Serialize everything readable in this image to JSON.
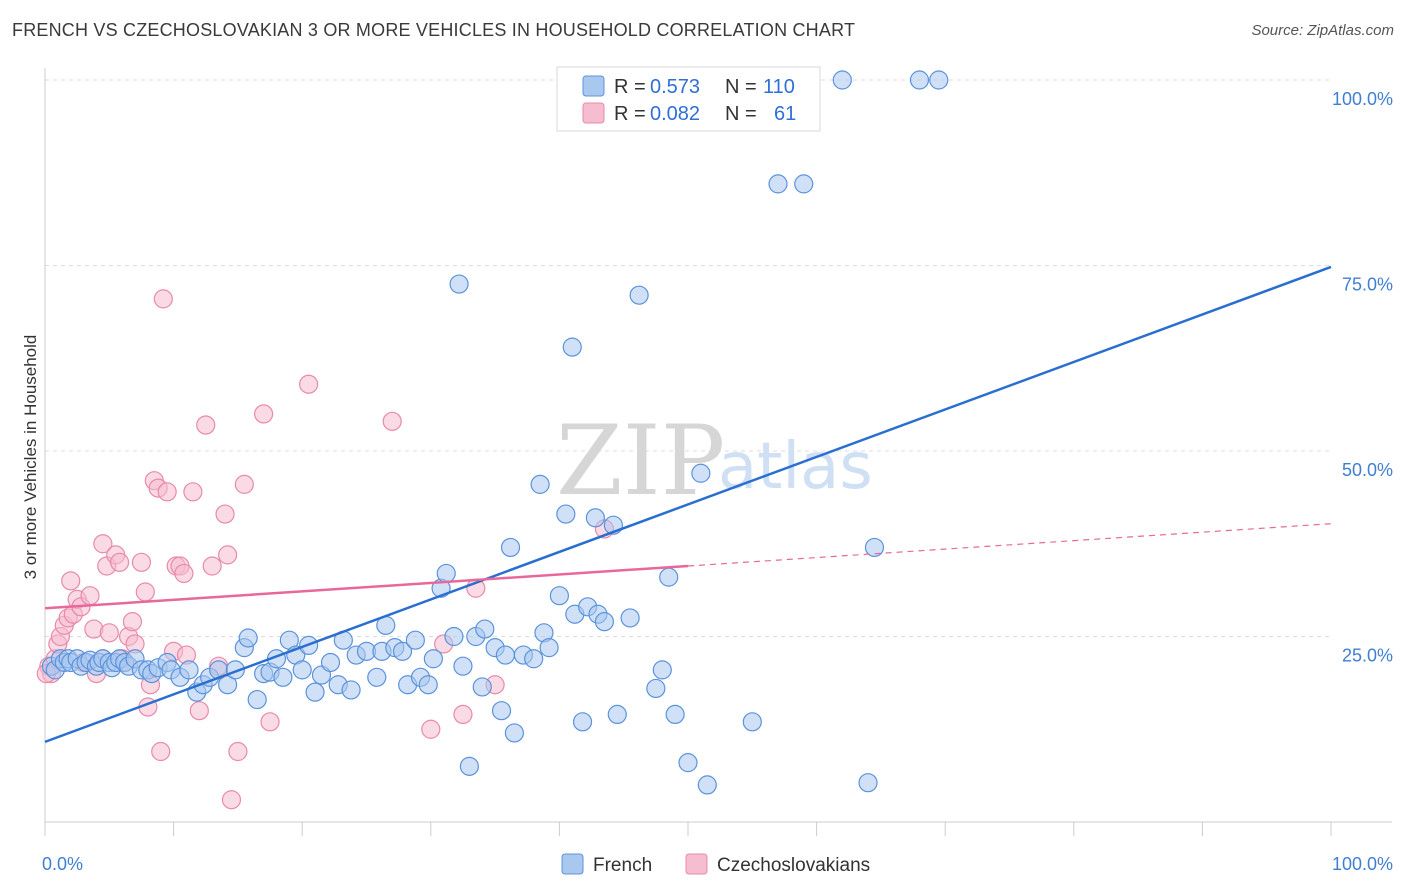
{
  "title": "FRENCH VS CZECHOSLOVAKIAN 3 OR MORE VEHICLES IN HOUSEHOLD CORRELATION CHART",
  "source": "Source: ZipAtlas.com",
  "watermark": {
    "zip": "ZIP",
    "atlas": "atlas"
  },
  "colors": {
    "french_fill": "#a9c8f0",
    "french_stroke": "#5b93da",
    "french_line": "#2a6fd0",
    "czech_fill": "#f6bcd0",
    "czech_stroke": "#e88aaa",
    "czech_line": "#e8689a",
    "grid": "#dddddd",
    "axis_text": "#3f7fd0"
  },
  "legend": {
    "rows": [
      {
        "r_label": "R =",
        "r_value": "0.573",
        "n_label": "N =",
        "n_value": "110"
      },
      {
        "r_label": "R =",
        "r_value": "0.082",
        "n_label": "N =",
        "n_value": "61"
      }
    ]
  },
  "chart_data": {
    "type": "scatter",
    "xlabel": "",
    "ylabel": "3 or more Vehicles in Household",
    "xlim": [
      0,
      100
    ],
    "ylim": [
      0,
      100
    ],
    "x_tick_labels": [
      "0.0%",
      "100.0%"
    ],
    "y_tick_labels": [
      "25.0%",
      "50.0%",
      "75.0%",
      "100.0%"
    ],
    "y_ticks": [
      25,
      50,
      75,
      100
    ],
    "grid": true,
    "legend_position": "top-center",
    "series": [
      {
        "name": "French",
        "trend": {
          "x": [
            0,
            100
          ],
          "y": [
            10.8,
            74.8
          ],
          "dashed_from": null
        },
        "points": [
          [
            0.5,
            21
          ],
          [
            0.8,
            20.5
          ],
          [
            1.2,
            22
          ],
          [
            1.5,
            21.5
          ],
          [
            1.8,
            22
          ],
          [
            2.0,
            21.5
          ],
          [
            2.5,
            22
          ],
          [
            2.8,
            21
          ],
          [
            3.2,
            21.5
          ],
          [
            3.5,
            21.8
          ],
          [
            4.0,
            21
          ],
          [
            4.2,
            21.5
          ],
          [
            4.5,
            22
          ],
          [
            5.0,
            21.5
          ],
          [
            5.2,
            20.8
          ],
          [
            5.5,
            21.5
          ],
          [
            5.8,
            22
          ],
          [
            6.2,
            21.5
          ],
          [
            6.5,
            21
          ],
          [
            7.0,
            22
          ],
          [
            7.5,
            20.5
          ],
          [
            8.0,
            20.5
          ],
          [
            8.3,
            20
          ],
          [
            8.8,
            20.8
          ],
          [
            9.5,
            21.5
          ],
          [
            9.8,
            20.5
          ],
          [
            10.5,
            19.5
          ],
          [
            11.2,
            20.5
          ],
          [
            11.8,
            17.5
          ],
          [
            12.3,
            18.5
          ],
          [
            12.8,
            19.5
          ],
          [
            13.5,
            20.5
          ],
          [
            14.2,
            18.5
          ],
          [
            14.8,
            20.5
          ],
          [
            15.5,
            23.5
          ],
          [
            15.8,
            24.8
          ],
          [
            16.5,
            16.5
          ],
          [
            17,
            20
          ],
          [
            17.5,
            20.2
          ],
          [
            18.0,
            22
          ],
          [
            18.5,
            19.5
          ],
          [
            19,
            24.5
          ],
          [
            19.5,
            22.5
          ],
          [
            20.0,
            20.5
          ],
          [
            20.5,
            23.8
          ],
          [
            21.0,
            17.5
          ],
          [
            21.5,
            19.8
          ],
          [
            22.2,
            21.5
          ],
          [
            22.8,
            18.5
          ],
          [
            23.2,
            24.5
          ],
          [
            23.8,
            17.8
          ],
          [
            24.2,
            22.5
          ],
          [
            25,
            23
          ],
          [
            25.8,
            19.5
          ],
          [
            26.2,
            23
          ],
          [
            26.5,
            26.5
          ],
          [
            27.2,
            23.5
          ],
          [
            27.8,
            23
          ],
          [
            28.2,
            18.5
          ],
          [
            28.8,
            24.5
          ],
          [
            29.2,
            19.5
          ],
          [
            29.8,
            18.5
          ],
          [
            30.2,
            22
          ],
          [
            30.8,
            31.5
          ],
          [
            31.2,
            33.5
          ],
          [
            31.8,
            25
          ],
          [
            32.2,
            72.5
          ],
          [
            32.5,
            21
          ],
          [
            33.0,
            7.5
          ],
          [
            33.5,
            25
          ],
          [
            34.0,
            18.2
          ],
          [
            34.2,
            26
          ],
          [
            35.0,
            23.5
          ],
          [
            35.5,
            15
          ],
          [
            35.8,
            22.5
          ],
          [
            36.2,
            37
          ],
          [
            36.5,
            12
          ],
          [
            37.2,
            22.5
          ],
          [
            38.0,
            22
          ],
          [
            38.5,
            45.5
          ],
          [
            38.8,
            25.5
          ],
          [
            39.2,
            23.5
          ],
          [
            40.0,
            30.5
          ],
          [
            40.5,
            41.5
          ],
          [
            41.0,
            64
          ],
          [
            41.2,
            28
          ],
          [
            41.8,
            13.5
          ],
          [
            42.2,
            29
          ],
          [
            42.8,
            41
          ],
          [
            43.0,
            28
          ],
          [
            43.5,
            27
          ],
          [
            44.2,
            40
          ],
          [
            44.5,
            14.5
          ],
          [
            45.5,
            27.5
          ],
          [
            46.2,
            71
          ],
          [
            47.5,
            18
          ],
          [
            48.0,
            20.5
          ],
          [
            48.5,
            33
          ],
          [
            49.0,
            14.5
          ],
          [
            50.0,
            8
          ],
          [
            51.0,
            47
          ],
          [
            51.5,
            5
          ],
          [
            55.0,
            13.5
          ],
          [
            57.0,
            86
          ],
          [
            59.0,
            86
          ],
          [
            62.0,
            100
          ],
          [
            64.5,
            37
          ],
          [
            64,
            5.3
          ],
          [
            68.0,
            100
          ],
          [
            69.5,
            100
          ]
        ]
      },
      {
        "name": "Czechoslovakians",
        "trend": {
          "x": [
            0,
            50
          ],
          "y": [
            28.8,
            34.5
          ],
          "dashed_to": [
            100,
            40.2
          ]
        },
        "points": [
          [
            0.3,
            21
          ],
          [
            0.5,
            20
          ],
          [
            0.8,
            22
          ],
          [
            1.0,
            24
          ],
          [
            1.2,
            25
          ],
          [
            1.5,
            26.5
          ],
          [
            1.8,
            27.5
          ],
          [
            2.0,
            32.5
          ],
          [
            2.2,
            28
          ],
          [
            2.5,
            30
          ],
          [
            2.8,
            29
          ],
          [
            3.0,
            21.5
          ],
          [
            3.5,
            30.5
          ],
          [
            3.8,
            26
          ],
          [
            4.0,
            20
          ],
          [
            4.5,
            22
          ],
          [
            4.5,
            37.5
          ],
          [
            4.8,
            34.5
          ],
          [
            5.0,
            25.5
          ],
          [
            5.5,
            36
          ],
          [
            5.8,
            35
          ],
          [
            6.0,
            22
          ],
          [
            6.2,
            21.5
          ],
          [
            6.5,
            25
          ],
          [
            6.8,
            27
          ],
          [
            7.0,
            24
          ],
          [
            7.5,
            35
          ],
          [
            7.8,
            31
          ],
          [
            8.0,
            15.5
          ],
          [
            8.2,
            18.5
          ],
          [
            8.5,
            46
          ],
          [
            8.8,
            45
          ],
          [
            9.0,
            9.5
          ],
          [
            9.2,
            70.5
          ],
          [
            9.5,
            44.5
          ],
          [
            10.0,
            23
          ],
          [
            10.2,
            34.5
          ],
          [
            10.5,
            34.5
          ],
          [
            10.8,
            33.5
          ],
          [
            11.0,
            22.5
          ],
          [
            11.5,
            44.5
          ],
          [
            12.0,
            15
          ],
          [
            12.5,
            53.5
          ],
          [
            13.0,
            34.5
          ],
          [
            13.5,
            21
          ],
          [
            14.0,
            41.5
          ],
          [
            14.2,
            36
          ],
          [
            14.5,
            3
          ],
          [
            15.0,
            9.5
          ],
          [
            15.5,
            45.5
          ],
          [
            17.0,
            55
          ],
          [
            17.5,
            13.5
          ],
          [
            20.5,
            59
          ],
          [
            27.0,
            54
          ],
          [
            30.0,
            12.5
          ],
          [
            31.0,
            24
          ],
          [
            32.5,
            14.5
          ],
          [
            33.5,
            31.5
          ],
          [
            35.0,
            18.5
          ],
          [
            43.5,
            39.5
          ],
          [
            0.1,
            20
          ]
        ]
      }
    ]
  },
  "bottom_legend": [
    {
      "label": "French"
    },
    {
      "label": "Czechoslovakians"
    }
  ]
}
